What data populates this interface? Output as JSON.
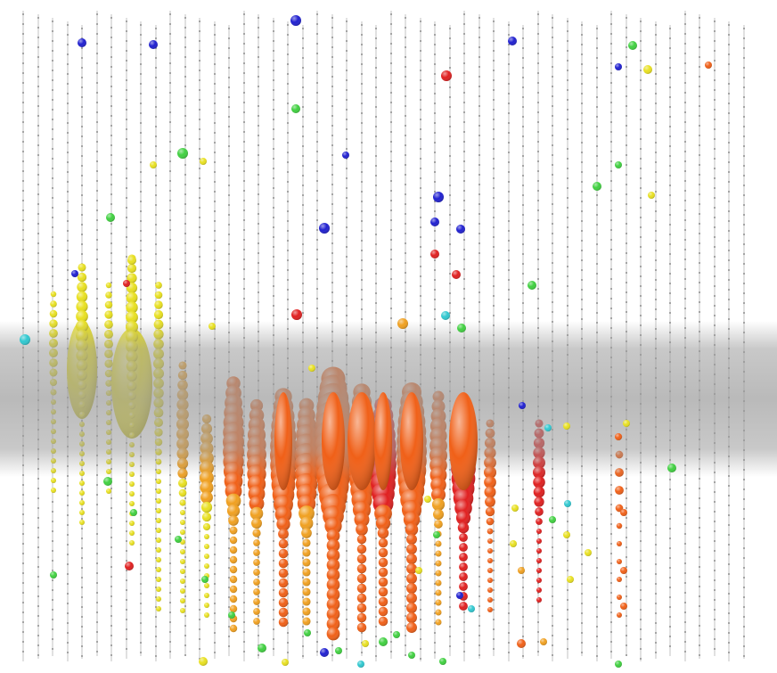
{
  "scene": {
    "description_visible_text": "",
    "background_color": "#ffffff",
    "string_line_color": "#9a9a9a",
    "module_color": "#6e6e6e",
    "dust_band_color": "#9c9c9c",
    "hit_colors": {
      "early": "#e02020",
      "early_mid": "#f06018",
      "mid": "#f0a020",
      "mid_late": "#e8e020",
      "late": "#40d040",
      "later": "#30c8d0",
      "latest": "#2020d0"
    },
    "hit_timing_gradient": [
      "#e02020",
      "#f06018",
      "#f0a020",
      "#e8e020",
      "#40d040",
      "#30c8d0",
      "#2020d0"
    ]
  }
}
